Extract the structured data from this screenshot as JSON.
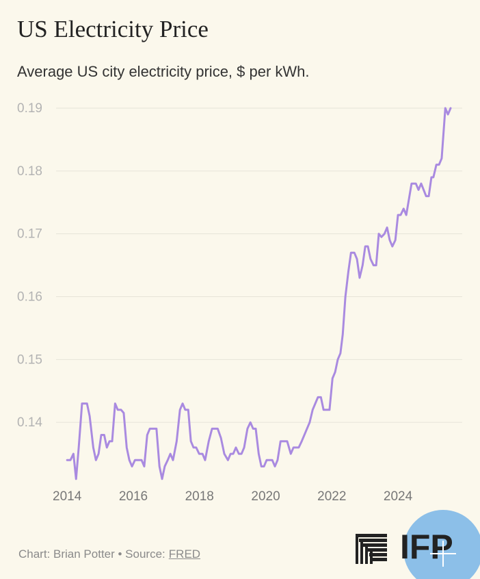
{
  "chart_data": {
    "type": "line",
    "title": "US Electricity Price",
    "subtitle": "Average US city electricity price, $ per kWh.",
    "credit": "Chart: Brian Potter • Source:",
    "source": "FRED",
    "logo_text": "IFP",
    "color": "#a98ae0",
    "grid": true,
    "xlim": [
      2013.5,
      2025.9
    ],
    "xticks": [
      2014,
      2016,
      2018,
      2020,
      2022,
      2024
    ],
    "ylim": [
      0.13,
      0.19
    ],
    "yticks": [
      0.14,
      0.15,
      0.16,
      0.17,
      0.18,
      0.19
    ],
    "x": [
      2014.0,
      2014.1,
      2014.19,
      2014.27,
      2014.35,
      2014.45,
      2014.6,
      2014.68,
      2014.79,
      2014.87,
      2014.95,
      2015.03,
      2015.12,
      2015.2,
      2015.28,
      2015.36,
      2015.45,
      2015.53,
      2015.63,
      2015.71,
      2015.8,
      2015.88,
      2015.96,
      2016.05,
      2016.25,
      2016.33,
      2016.42,
      2016.5,
      2016.7,
      2016.79,
      2016.87,
      2016.95,
      2017.04,
      2017.12,
      2017.2,
      2017.31,
      2017.41,
      2017.49,
      2017.57,
      2017.66,
      2017.74,
      2017.82,
      2017.9,
      2017.99,
      2018.09,
      2018.17,
      2018.28,
      2018.38,
      2018.55,
      2018.65,
      2018.75,
      2018.86,
      2018.94,
      2019.02,
      2019.1,
      2019.19,
      2019.27,
      2019.35,
      2019.45,
      2019.54,
      2019.62,
      2019.7,
      2019.79,
      2019.87,
      2019.95,
      2020.03,
      2020.2,
      2020.28,
      2020.36,
      2020.45,
      2020.65,
      2020.76,
      2020.84,
      2021.0,
      2021.09,
      2021.17,
      2021.25,
      2021.33,
      2021.42,
      2021.5,
      2021.58,
      2021.67,
      2021.75,
      2021.93,
      2022.02,
      2022.1,
      2022.18,
      2022.26,
      2022.33,
      2022.41,
      2022.5,
      2022.58,
      2022.68,
      2022.76,
      2022.84,
      2022.93,
      2023.01,
      2023.09,
      2023.17,
      2023.26,
      2023.34,
      2023.42,
      2023.5,
      2023.59,
      2023.67,
      2023.75,
      2023.83,
      2023.92,
      2024.0,
      2024.08,
      2024.17,
      2024.25,
      2024.41,
      2024.54,
      2024.62,
      2024.7,
      2024.85,
      2024.93,
      2025.01,
      2025.07,
      2025.16,
      2025.24,
      2025.32,
      2025.43,
      2025.51,
      2025.59
    ],
    "values": [
      0.134,
      0.134,
      0.135,
      0.131,
      0.136,
      0.143,
      0.143,
      0.141,
      0.136,
      0.134,
      0.135,
      0.138,
      0.138,
      0.136,
      0.137,
      0.137,
      0.143,
      0.142,
      0.142,
      0.1415,
      0.136,
      0.134,
      0.133,
      0.134,
      0.134,
      0.133,
      0.138,
      0.139,
      0.139,
      0.133,
      0.131,
      0.133,
      0.134,
      0.135,
      0.134,
      0.137,
      0.142,
      0.143,
      0.142,
      0.142,
      0.137,
      0.136,
      0.136,
      0.135,
      0.135,
      0.134,
      0.137,
      0.139,
      0.139,
      0.1375,
      0.135,
      0.134,
      0.135,
      0.135,
      0.136,
      0.135,
      0.135,
      0.136,
      0.139,
      0.14,
      0.139,
      0.139,
      0.135,
      0.133,
      0.133,
      0.134,
      0.134,
      0.133,
      0.134,
      0.137,
      0.137,
      0.135,
      0.136,
      0.136,
      0.137,
      0.138,
      0.139,
      0.14,
      0.142,
      0.143,
      0.144,
      0.144,
      0.142,
      0.142,
      0.147,
      0.148,
      0.15,
      0.151,
      0.154,
      0.16,
      0.164,
      0.167,
      0.167,
      0.166,
      0.163,
      0.165,
      0.168,
      0.168,
      0.166,
      0.165,
      0.165,
      0.17,
      0.1695,
      0.17,
      0.171,
      0.169,
      0.168,
      0.169,
      0.173,
      0.173,
      0.174,
      0.173,
      0.178,
      0.178,
      0.177,
      0.178,
      0.176,
      0.176,
      0.179,
      0.179,
      0.181,
      0.181,
      0.182,
      0.19,
      0.189,
      0.19
    ]
  }
}
